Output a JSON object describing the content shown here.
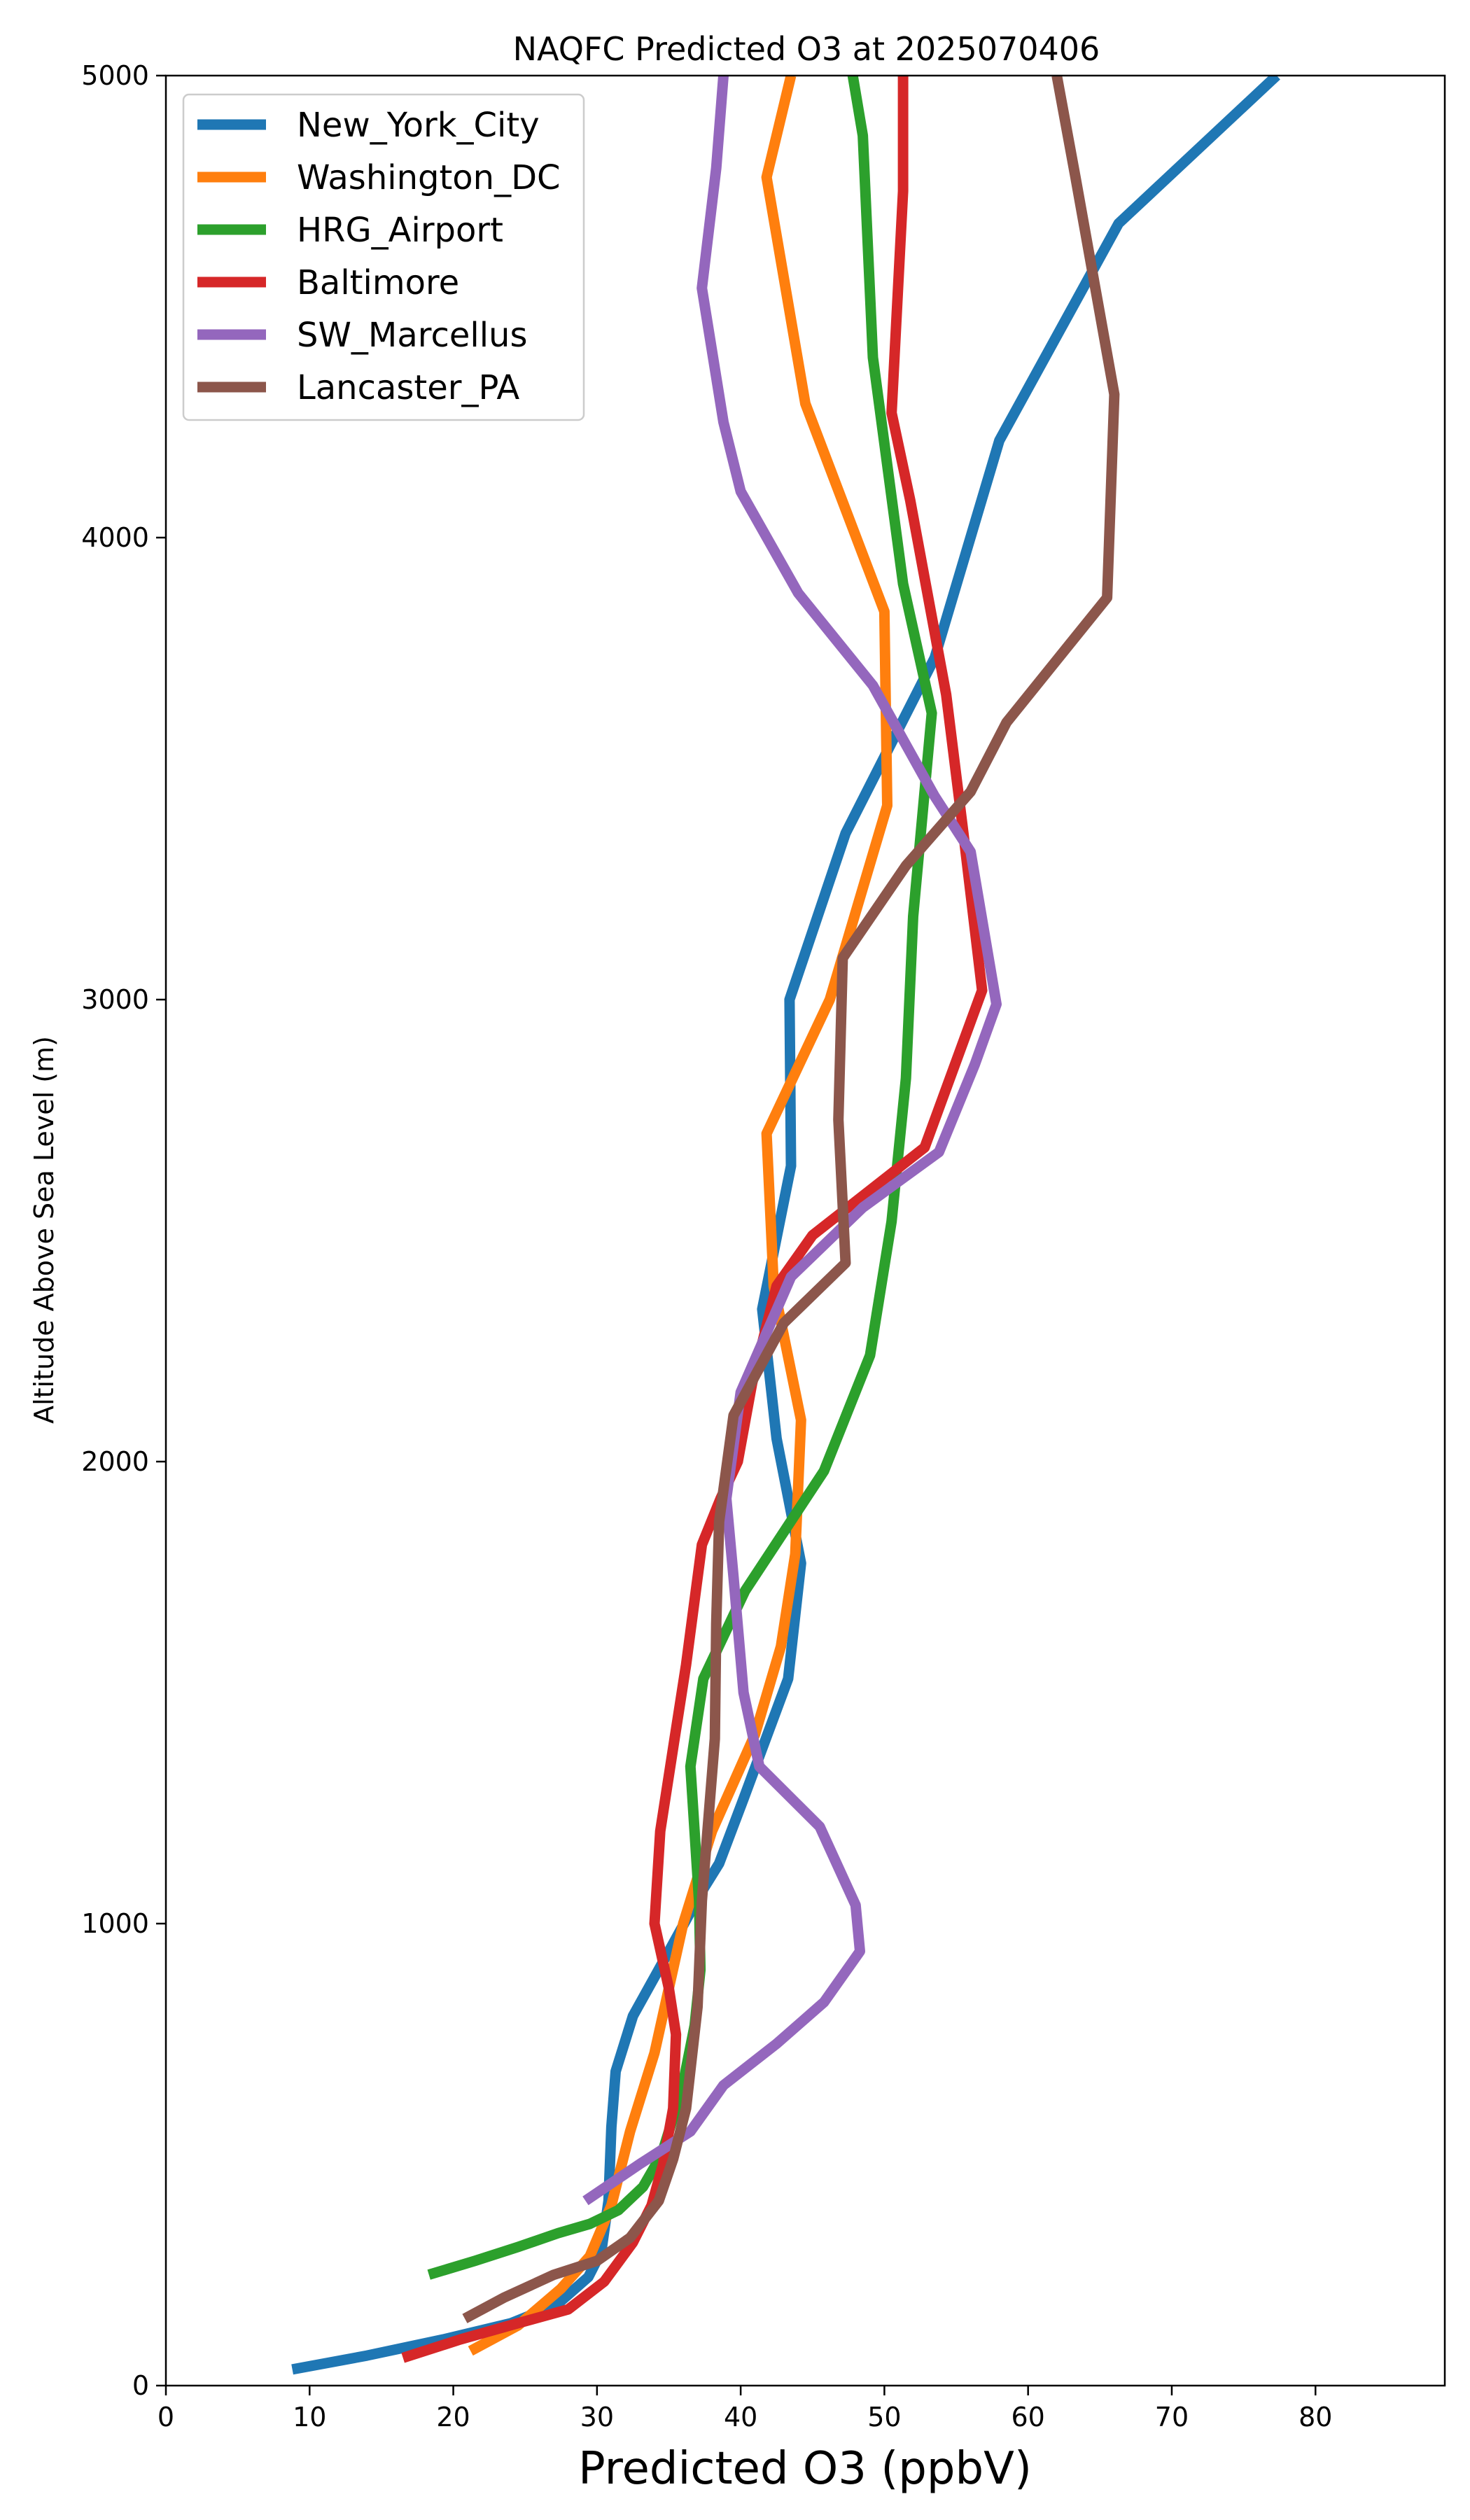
{
  "chart_data": {
    "type": "line",
    "title": "NAQFC Predicted O3 at 2025070406",
    "xlabel": "Predicted O3 (ppbV)",
    "ylabel": "Altitude Above Sea Level (m)",
    "xlim": [
      0,
      89
    ],
    "ylim": [
      0,
      5000
    ],
    "xticks": [
      "0",
      "10",
      "20",
      "30",
      "40",
      "50",
      "60",
      "70",
      "80"
    ],
    "xtick_values": [
      0,
      10,
      20,
      30,
      40,
      50,
      60,
      70,
      80
    ],
    "yticks": [
      "0",
      "1000",
      "2000",
      "3000",
      "4000",
      "5000"
    ],
    "ytick_values": [
      0,
      1000,
      2000,
      3000,
      4000,
      5000
    ],
    "grid": false,
    "legend_position": "top-left",
    "series": [
      {
        "name": "New_York_City",
        "color": "#1f77b4",
        "points": [
          [
            8.8,
            35
          ],
          [
            14,
            65
          ],
          [
            19.3,
            100
          ],
          [
            24,
            135
          ],
          [
            27.2,
            175
          ],
          [
            29.4,
            235
          ],
          [
            30.3,
            290
          ],
          [
            30.8,
            400
          ],
          [
            31,
            560
          ],
          [
            31.3,
            680
          ],
          [
            32.5,
            800
          ],
          [
            35,
            940
          ],
          [
            37.3,
            1070
          ],
          [
            38.5,
            1130
          ],
          [
            40.2,
            1270
          ],
          [
            43.3,
            1530
          ],
          [
            44.2,
            1780
          ],
          [
            42.5,
            2050
          ],
          [
            41.5,
            2330
          ],
          [
            43.5,
            2640
          ],
          [
            43.4,
            3000
          ],
          [
            47.3,
            3360
          ],
          [
            53.5,
            3740
          ],
          [
            58,
            4210
          ],
          [
            66.3,
            4680
          ],
          [
            77.3,
            5000
          ]
        ]
      },
      {
        "name": "Washington_DC",
        "color": "#ff7f0e",
        "points": [
          [
            21.2,
            75
          ],
          [
            24.5,
            130
          ],
          [
            27.5,
            210
          ],
          [
            29.5,
            280
          ],
          [
            31,
            390
          ],
          [
            32.3,
            550
          ],
          [
            34,
            720
          ],
          [
            36,
            1000
          ],
          [
            38,
            1200
          ],
          [
            41,
            1410
          ],
          [
            42.8,
            1600
          ],
          [
            43.8,
            1800
          ],
          [
            44.2,
            2090
          ],
          [
            42.3,
            2380
          ],
          [
            41.8,
            2710
          ],
          [
            46.2,
            3000
          ],
          [
            50.2,
            3420
          ],
          [
            50,
            3840
          ],
          [
            44.5,
            4290
          ],
          [
            41.8,
            4780
          ],
          [
            43.5,
            5000
          ]
        ]
      },
      {
        "name": "HRG_Airport",
        "color": "#2ca02c",
        "points": [
          [
            18.3,
            240
          ],
          [
            21.5,
            270
          ],
          [
            24.5,
            300
          ],
          [
            27.3,
            330
          ],
          [
            29.5,
            350
          ],
          [
            31.5,
            380
          ],
          [
            33.2,
            430
          ],
          [
            34.5,
            500
          ],
          [
            35.9,
            640
          ],
          [
            36.8,
            780
          ],
          [
            37.2,
            900
          ],
          [
            37.1,
            1050
          ],
          [
            36.5,
            1340
          ],
          [
            37.4,
            1530
          ],
          [
            40.3,
            1720
          ],
          [
            45.8,
            1980
          ],
          [
            49,
            2230
          ],
          [
            50.5,
            2520
          ],
          [
            51.5,
            2830
          ],
          [
            52,
            3180
          ],
          [
            53.3,
            3620
          ],
          [
            51.3,
            3900
          ],
          [
            49.2,
            4390
          ],
          [
            48.5,
            4870
          ],
          [
            47.8,
            5000
          ]
        ]
      },
      {
        "name": "Baltimore",
        "color": "#d62728",
        "points": [
          [
            16.5,
            60
          ],
          [
            20.5,
            100
          ],
          [
            24.5,
            135
          ],
          [
            28,
            165
          ],
          [
            30.5,
            225
          ],
          [
            32.5,
            310
          ],
          [
            33.8,
            390
          ],
          [
            34.6,
            480
          ],
          [
            35.3,
            600
          ],
          [
            35.5,
            760
          ],
          [
            35,
            860
          ],
          [
            34,
            1000
          ],
          [
            34.4,
            1200
          ],
          [
            35.3,
            1380
          ],
          [
            36.2,
            1560
          ],
          [
            37.3,
            1820
          ],
          [
            38.6,
            1920
          ],
          [
            39.8,
            2000
          ],
          [
            40.8,
            2170
          ],
          [
            42.5,
            2380
          ],
          [
            45,
            2490
          ],
          [
            52.8,
            2680
          ],
          [
            56.8,
            3020
          ],
          [
            55.5,
            3360
          ],
          [
            54.3,
            3660
          ],
          [
            51.8,
            4080
          ],
          [
            50.5,
            4270
          ],
          [
            51.3,
            4750
          ],
          [
            51.3,
            5000
          ]
        ]
      },
      {
        "name": "SW_Marcellus",
        "color": "#9467bd",
        "points": [
          [
            29.2,
            400
          ],
          [
            33,
            480
          ],
          [
            36.5,
            550
          ],
          [
            38.8,
            650
          ],
          [
            42.5,
            740
          ],
          [
            45.8,
            830
          ],
          [
            48.3,
            940
          ],
          [
            48,
            1040
          ],
          [
            45.5,
            1210
          ],
          [
            41.3,
            1340
          ],
          [
            40.2,
            1500
          ],
          [
            39.5,
            1750
          ],
          [
            39,
            1920
          ],
          [
            40,
            2150
          ],
          [
            43.5,
            2400
          ],
          [
            48.5,
            2550
          ],
          [
            53.8,
            2670
          ],
          [
            56.3,
            2860
          ],
          [
            57.8,
            2990
          ],
          [
            56,
            3320
          ],
          [
            53.5,
            3440
          ],
          [
            49.2,
            3680
          ],
          [
            44,
            3880
          ],
          [
            40,
            4100
          ],
          [
            38.8,
            4250
          ],
          [
            37.3,
            4540
          ],
          [
            38.3,
            4800
          ],
          [
            38.8,
            5000
          ]
        ]
      },
      {
        "name": "Lancaster_PA",
        "color": "#8c564b",
        "points": [
          [
            20.8,
            145
          ],
          [
            23.5,
            190
          ],
          [
            27,
            240
          ],
          [
            30,
            270
          ],
          [
            32.3,
            320
          ],
          [
            34.3,
            400
          ],
          [
            35.3,
            490
          ],
          [
            36.2,
            600
          ],
          [
            37,
            820
          ],
          [
            37.3,
            1050
          ],
          [
            38.2,
            1400
          ],
          [
            38.3,
            1650
          ],
          [
            38.5,
            1870
          ],
          [
            39.5,
            2100
          ],
          [
            43,
            2300
          ],
          [
            47.3,
            2430
          ],
          [
            46.8,
            2740
          ],
          [
            47.1,
            3090
          ],
          [
            51.5,
            3290
          ],
          [
            56,
            3450
          ],
          [
            58.5,
            3600
          ],
          [
            65.5,
            3870
          ],
          [
            66,
            4310
          ],
          [
            63.3,
            4780
          ],
          [
            62,
            5000
          ]
        ]
      }
    ]
  }
}
